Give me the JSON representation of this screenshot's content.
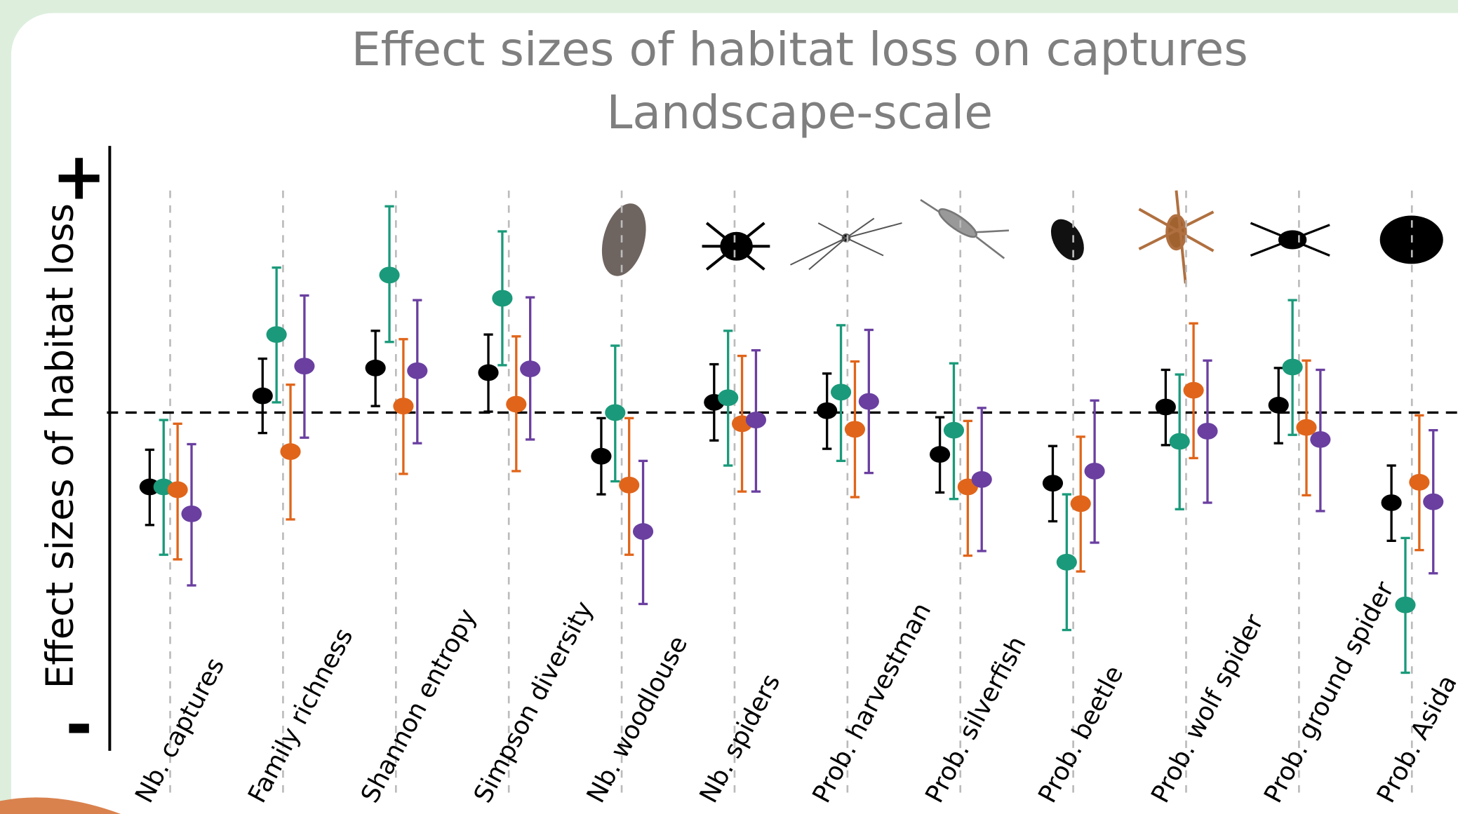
{
  "chart_data": {
    "type": "errorbar",
    "title": "Effect sizes of habitat loss on captures",
    "subtitle": "Landscape-scale",
    "y_label": "Effect sizes of habitat loss",
    "ylim": [
      -3.64,
      2.87
    ],
    "yticks": [
      {
        "value": 2.5,
        "label": "+"
      },
      {
        "value": -3.4,
        "label": "-"
      }
    ],
    "categories": [
      "Nb. captures",
      "Family richness",
      "Shannon entropy",
      "Simpson diversity",
      "Nb. woodlouse",
      "Nb. spiders",
      "Prob. harvestman",
      "Prob. silverfish",
      "Prob. beetle",
      "Prob. wolf spider",
      "Prob. ground spider",
      "Prob. Asida"
    ],
    "series": [
      {
        "color": "#000000",
        "values": [
          -0.8,
          0.18,
          0.48,
          0.43,
          -0.47,
          0.11,
          0.02,
          -0.45,
          -0.76,
          0.06,
          0.08,
          -0.97
        ],
        "lows": [
          -1.21,
          -0.22,
          0.07,
          0.01,
          -0.88,
          -0.3,
          -0.39,
          -0.86,
          -1.17,
          -0.35,
          -0.33,
          -1.38
        ],
        "highs": [
          -0.4,
          0.58,
          0.88,
          0.84,
          -0.06,
          0.52,
          0.42,
          -0.05,
          -0.36,
          0.46,
          0.48,
          -0.57
        ]
      },
      {
        "color": "#1a9a7a",
        "values": [
          -0.8,
          0.84,
          1.48,
          1.23,
          0,
          0.16,
          0.22,
          -0.19,
          -1.61,
          -0.31,
          0.49,
          -2.07
        ],
        "lows": [
          -1.53,
          0.11,
          0.76,
          0.51,
          -0.74,
          -0.57,
          -0.52,
          -0.93,
          -2.34,
          -1.04,
          -0.24,
          -2.8
        ],
        "highs": [
          -0.08,
          1.56,
          2.22,
          1.95,
          0.72,
          0.88,
          0.94,
          0.53,
          -0.88,
          0.41,
          1.21,
          -1.35
        ]
      },
      {
        "color": "#e0651a",
        "values": [
          -0.83,
          -0.42,
          0.07,
          0.09,
          -0.78,
          -0.12,
          -0.18,
          -0.8,
          -0.98,
          0.24,
          -0.16,
          -0.75
        ],
        "lows": [
          -1.58,
          -1.15,
          -0.66,
          -0.63,
          -1.53,
          -0.85,
          -0.91,
          -1.54,
          -1.71,
          -0.49,
          -0.89,
          -1.48
        ],
        "highs": [
          -0.12,
          0.3,
          0.79,
          0.82,
          -0.06,
          0.61,
          0.55,
          -0.09,
          -0.26,
          0.96,
          0.56,
          -0.03
        ]
      },
      {
        "color": "#6a3fa0",
        "values": [
          -1.09,
          0.5,
          0.45,
          0.47,
          -1.28,
          -0.08,
          0.12,
          -0.72,
          -0.63,
          -0.2,
          -0.29,
          -0.96
        ],
        "lows": [
          -1.86,
          -0.27,
          -0.33,
          -0.29,
          -2.06,
          -0.85,
          -0.65,
          -1.49,
          -1.4,
          -0.97,
          -1.06,
          -1.73
        ],
        "highs": [
          -0.34,
          1.26,
          1.21,
          1.24,
          -0.52,
          0.67,
          0.89,
          0.05,
          0.13,
          0.56,
          0.46,
          -0.19
        ]
      }
    ]
  }
}
